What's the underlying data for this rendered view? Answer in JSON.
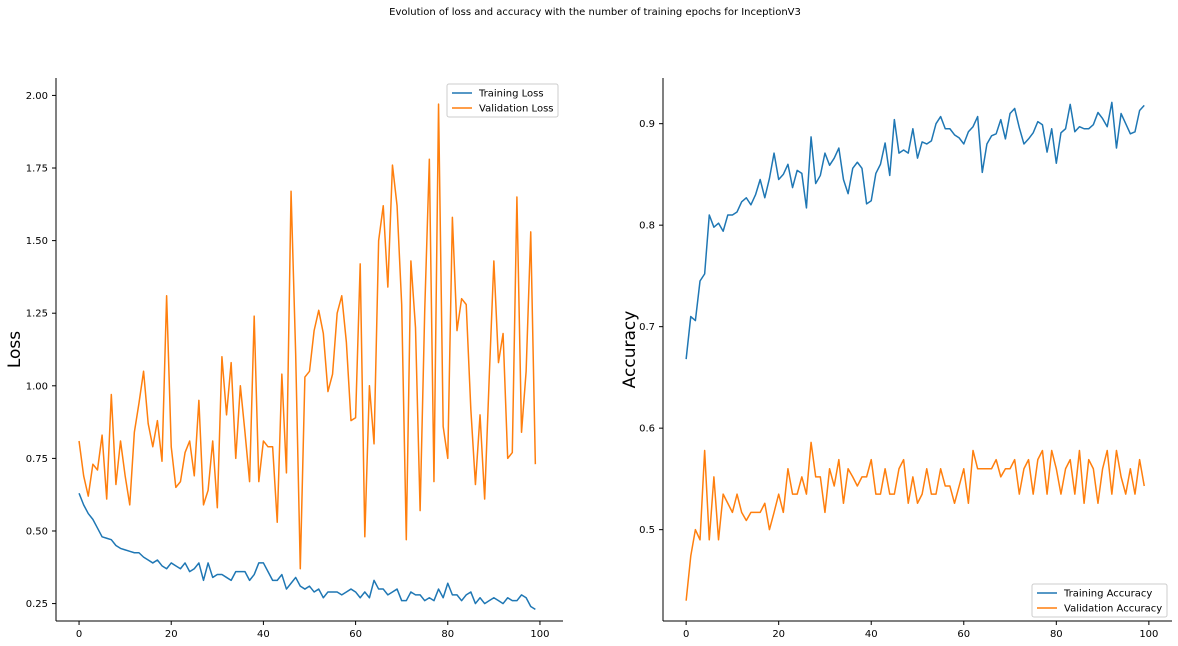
{
  "title": "Evolution of loss and accuracy with the number of training epochs for InceptionV3",
  "colors": {
    "training": "#1f77b4",
    "validation": "#ff7f0e",
    "axis": "#000000",
    "legend_border": "#cccccc"
  },
  "chart_data": [
    {
      "type": "line",
      "xlabel": "",
      "ylabel": "Loss",
      "xlim": [
        -5,
        105
      ],
      "ylim": [
        0.19,
        2.06
      ],
      "xticks": [
        0,
        20,
        40,
        60,
        80,
        100
      ],
      "yticks": [
        0.25,
        0.5,
        0.75,
        1.0,
        1.25,
        1.5,
        1.75,
        2.0
      ],
      "ytick_labels": [
        "0.25",
        "0.50",
        "0.75",
        "1.00",
        "1.25",
        "1.50",
        "1.75",
        "2.00"
      ],
      "grid": false,
      "legend_position": "top-right",
      "series": [
        {
          "name": "Training Loss",
          "color": "#1f77b4",
          "values": [
            0.63,
            0.59,
            0.56,
            0.54,
            0.51,
            0.48,
            0.475,
            0.47,
            0.45,
            0.44,
            0.435,
            0.43,
            0.425,
            0.425,
            0.41,
            0.4,
            0.39,
            0.4,
            0.38,
            0.37,
            0.39,
            0.38,
            0.37,
            0.39,
            0.36,
            0.37,
            0.39,
            0.33,
            0.39,
            0.34,
            0.35,
            0.35,
            0.34,
            0.33,
            0.36,
            0.36,
            0.36,
            0.33,
            0.35,
            0.39,
            0.39,
            0.36,
            0.33,
            0.33,
            0.35,
            0.3,
            0.32,
            0.34,
            0.31,
            0.3,
            0.31,
            0.29,
            0.3,
            0.27,
            0.29,
            0.29,
            0.29,
            0.28,
            0.29,
            0.3,
            0.29,
            0.27,
            0.29,
            0.27,
            0.33,
            0.3,
            0.3,
            0.28,
            0.29,
            0.3,
            0.26,
            0.26,
            0.29,
            0.28,
            0.28,
            0.26,
            0.27,
            0.26,
            0.3,
            0.27,
            0.32,
            0.28,
            0.28,
            0.26,
            0.28,
            0.29,
            0.25,
            0.27,
            0.25,
            0.26,
            0.27,
            0.26,
            0.25,
            0.27,
            0.26,
            0.26,
            0.28,
            0.27,
            0.24,
            0.23
          ]
        },
        {
          "name": "Validation Loss",
          "color": "#ff7f0e",
          "values": [
            0.81,
            0.69,
            0.62,
            0.73,
            0.71,
            0.83,
            0.61,
            0.97,
            0.66,
            0.81,
            0.69,
            0.59,
            0.84,
            0.94,
            1.05,
            0.87,
            0.79,
            0.88,
            0.74,
            1.31,
            0.79,
            0.65,
            0.67,
            0.77,
            0.81,
            0.69,
            0.95,
            0.59,
            0.64,
            0.81,
            0.58,
            1.1,
            0.9,
            1.08,
            0.75,
            1.0,
            0.84,
            0.67,
            1.24,
            0.67,
            0.81,
            0.79,
            0.79,
            0.53,
            1.04,
            0.7,
            1.67,
            1.11,
            0.37,
            1.03,
            1.05,
            1.19,
            1.26,
            1.18,
            0.98,
            1.04,
            1.25,
            1.31,
            1.15,
            0.88,
            0.89,
            1.42,
            0.48,
            1.0,
            0.8,
            1.5,
            1.62,
            1.34,
            1.76,
            1.62,
            1.28,
            0.47,
            1.43,
            1.2,
            0.57,
            1.26,
            1.78,
            0.67,
            1.97,
            0.86,
            0.75,
            1.58,
            1.19,
            1.3,
            1.28,
            0.92,
            0.66,
            0.9,
            0.61,
            1.03,
            1.43,
            1.08,
            1.18,
            0.75,
            0.77,
            1.65,
            0.84,
            1.05,
            1.53,
            0.73
          ]
        }
      ]
    },
    {
      "type": "line",
      "xlabel": "",
      "ylabel": "Accuracy",
      "xlim": [
        -5,
        105
      ],
      "ylim": [
        0.41,
        0.945
      ],
      "xticks": [
        0,
        20,
        40,
        60,
        80,
        100
      ],
      "yticks": [
        0.5,
        0.6,
        0.7,
        0.8,
        0.9
      ],
      "ytick_labels": [
        "0.5",
        "0.6",
        "0.7",
        "0.8",
        "0.9"
      ],
      "grid": false,
      "legend_position": "bottom-right",
      "series": [
        {
          "name": "Training Accuracy",
          "color": "#1f77b4",
          "values": [
            0.668,
            0.71,
            0.706,
            0.745,
            0.752,
            0.81,
            0.798,
            0.802,
            0.794,
            0.81,
            0.81,
            0.813,
            0.823,
            0.827,
            0.82,
            0.83,
            0.845,
            0.827,
            0.846,
            0.871,
            0.845,
            0.85,
            0.86,
            0.837,
            0.854,
            0.851,
            0.817,
            0.887,
            0.841,
            0.849,
            0.871,
            0.859,
            0.866,
            0.876,
            0.845,
            0.831,
            0.856,
            0.862,
            0.856,
            0.821,
            0.824,
            0.851,
            0.86,
            0.881,
            0.849,
            0.904,
            0.871,
            0.874,
            0.871,
            0.895,
            0.866,
            0.882,
            0.88,
            0.883,
            0.9,
            0.907,
            0.895,
            0.895,
            0.889,
            0.886,
            0.88,
            0.892,
            0.897,
            0.907,
            0.852,
            0.88,
            0.888,
            0.89,
            0.904,
            0.885,
            0.91,
            0.915,
            0.896,
            0.88,
            0.885,
            0.891,
            0.902,
            0.899,
            0.872,
            0.895,
            0.861,
            0.891,
            0.895,
            0.919,
            0.892,
            0.897,
            0.895,
            0.895,
            0.899,
            0.911,
            0.905,
            0.897,
            0.921,
            0.876,
            0.91,
            0.9,
            0.89,
            0.892,
            0.913,
            0.918
          ]
        },
        {
          "name": "Validation Accuracy",
          "color": "#ff7f0e",
          "values": [
            0.43,
            0.474,
            0.5,
            0.49,
            0.578,
            0.49,
            0.552,
            0.49,
            0.535,
            0.526,
            0.517,
            0.535,
            0.517,
            0.509,
            0.517,
            0.517,
            0.517,
            0.526,
            0.5,
            0.517,
            0.535,
            0.517,
            0.56,
            0.535,
            0.535,
            0.552,
            0.535,
            0.586,
            0.552,
            0.552,
            0.517,
            0.56,
            0.543,
            0.569,
            0.526,
            0.56,
            0.552,
            0.543,
            0.552,
            0.552,
            0.569,
            0.535,
            0.535,
            0.56,
            0.535,
            0.535,
            0.56,
            0.569,
            0.526,
            0.552,
            0.526,
            0.535,
            0.56,
            0.535,
            0.535,
            0.56,
            0.543,
            0.543,
            0.526,
            0.543,
            0.56,
            0.526,
            0.578,
            0.56,
            0.56,
            0.56,
            0.56,
            0.569,
            0.552,
            0.56,
            0.56,
            0.569,
            0.535,
            0.56,
            0.569,
            0.535,
            0.569,
            0.578,
            0.535,
            0.578,
            0.56,
            0.535,
            0.56,
            0.569,
            0.535,
            0.578,
            0.526,
            0.569,
            0.56,
            0.526,
            0.56,
            0.578,
            0.535,
            0.578,
            0.552,
            0.535,
            0.56,
            0.535,
            0.569,
            0.543
          ]
        }
      ]
    }
  ]
}
